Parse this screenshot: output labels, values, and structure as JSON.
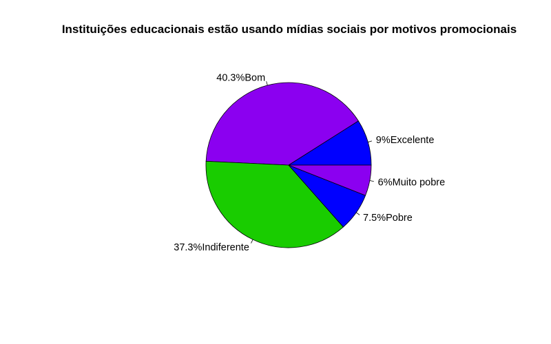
{
  "chart_data": {
    "type": "pie",
    "title": "Instituições educacionais estão usando mídias sociais por motivos promocionais",
    "slices": [
      {
        "label": "9%Excelente",
        "value": 9.0,
        "color": "#0000FF"
      },
      {
        "label": "40.3%Bom",
        "value": 40.3,
        "color": "#8B00F0"
      },
      {
        "label": "37.3%Indiferente",
        "value": 37.3,
        "color": "#19CC00"
      },
      {
        "label": "7.5%Pobre",
        "value": 7.5,
        "color": "#0000FF"
      },
      {
        "label": "6%Muito pobre",
        "value": 6.0,
        "color": "#8B00F0"
      }
    ],
    "start_angle_deg": 0,
    "direction": "counterclockwise"
  }
}
